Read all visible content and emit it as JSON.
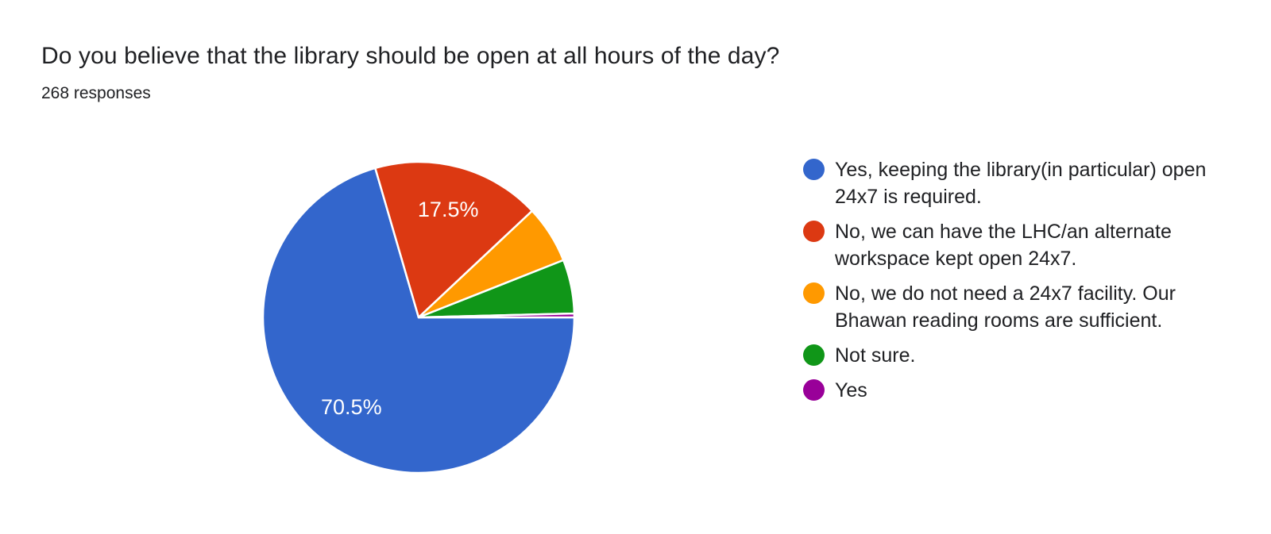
{
  "header": {
    "title": "Do you believe that the library should be open at all hours of the day?",
    "responses": "268 responses"
  },
  "chart_data": {
    "type": "pie",
    "title": "Do you believe that the library should be open at all hours of the day?",
    "subtitle": "268 responses",
    "total_responses": 268,
    "legend_position": "right",
    "start_angle": "3-o-clock",
    "direction": "clockwise",
    "slice_separator_color": "#ffffff",
    "slices": [
      {
        "label": "Yes, keeping the library(in particular) open 24x7 is required.",
        "percent": 70.5,
        "pct_label": "70.5%",
        "color": "#3366CC"
      },
      {
        "label": "No, we can have the LHC/an alternate workspace kept open 24x7.",
        "percent": 17.5,
        "pct_label": "17.5%",
        "color": "#DC3912"
      },
      {
        "label": "No, we do not need a 24x7 facility. Our Bhawan reading rooms are sufficient.",
        "percent": 6.0,
        "pct_label": "",
        "color": "#FF9900"
      },
      {
        "label": "Not sure.",
        "percent": 5.6,
        "pct_label": "",
        "color": "#109618"
      },
      {
        "label": "Yes",
        "percent": 0.4,
        "pct_label": "",
        "color": "#990099"
      }
    ]
  }
}
